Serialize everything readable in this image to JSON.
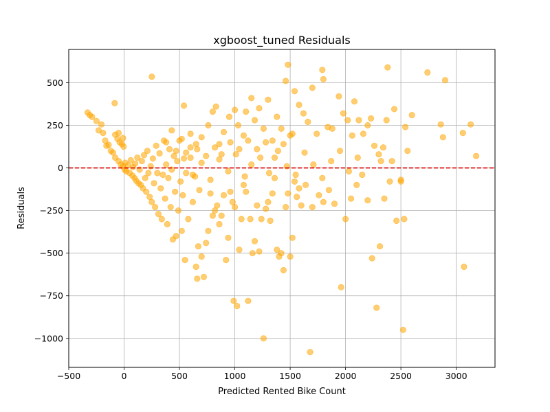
{
  "chart_data": {
    "type": "scatter",
    "title": "xgboost_tuned Residuals",
    "xlabel": "Predicted Rented Bike Count",
    "ylabel": "Residuals",
    "xlim": [
      -500,
      3350
    ],
    "ylim": [
      -1170,
      695
    ],
    "xticks": [
      -500,
      0,
      500,
      1000,
      1500,
      2000,
      2500,
      3000
    ],
    "yticks": [
      -1000,
      -750,
      -500,
      -250,
      0,
      250,
      500
    ],
    "grid": true,
    "marker_color": "#FFA500",
    "reference_line": {
      "y": 0,
      "color": "#DD0000",
      "style": "dashed"
    },
    "series": [
      {
        "points": [
          [
            -330,
            325
          ],
          [
            -310,
            310
          ],
          [
            -290,
            300
          ],
          [
            -250,
            275
          ],
          [
            -230,
            220
          ],
          [
            -205,
            255
          ],
          [
            -190,
            205
          ],
          [
            -170,
            160
          ],
          [
            -160,
            130
          ],
          [
            -140,
            135
          ],
          [
            -120,
            100
          ],
          [
            -100,
            90
          ],
          [
            -85,
            380
          ],
          [
            -80,
            195
          ],
          [
            -60,
            170
          ],
          [
            -50,
            205
          ],
          [
            -40,
            150
          ],
          [
            -20,
            140
          ],
          [
            -10,
            175
          ],
          [
            -5,
            125
          ],
          [
            -80,
            60
          ],
          [
            -50,
            40
          ],
          [
            -30,
            20
          ],
          [
            -10,
            10
          ],
          [
            5,
            -10
          ],
          [
            10,
            30
          ],
          [
            20,
            -20
          ],
          [
            35,
            15
          ],
          [
            50,
            -30
          ],
          [
            60,
            45
          ],
          [
            75,
            -45
          ],
          [
            80,
            5
          ],
          [
            95,
            -60
          ],
          [
            100,
            25
          ],
          [
            110,
            -75
          ],
          [
            120,
            60
          ],
          [
            130,
            -90
          ],
          [
            140,
            -10
          ],
          [
            150,
            -100
          ],
          [
            160,
            40
          ],
          [
            170,
            -120
          ],
          [
            180,
            75
          ],
          [
            190,
            -60
          ],
          [
            200,
            -140
          ],
          [
            210,
            100
          ],
          [
            220,
            -30
          ],
          [
            230,
            -170
          ],
          [
            240,
            10
          ],
          [
            250,
            -200
          ],
          [
            260,
            55
          ],
          [
            270,
            -90
          ],
          [
            280,
            -230
          ],
          [
            290,
            130
          ],
          [
            300,
            -30
          ],
          [
            310,
            -270
          ],
          [
            320,
            85
          ],
          [
            330,
            -120
          ],
          [
            340,
            -300
          ],
          [
            350,
            -40
          ],
          [
            360,
            160
          ],
          [
            370,
            -180
          ],
          [
            380,
            20
          ],
          [
            390,
            -330
          ],
          [
            400,
            -60
          ],
          [
            410,
            110
          ],
          [
            420,
            -230
          ],
          [
            430,
            -10
          ],
          [
            440,
            -420
          ],
          [
            450,
            70
          ],
          [
            460,
            -140
          ],
          [
            470,
            -400
          ],
          [
            480,
            40
          ],
          [
            490,
            -250
          ],
          [
            500,
            160
          ],
          [
            510,
            -80
          ],
          [
            520,
            -370
          ],
          [
            530,
            -160
          ],
          [
            540,
            55
          ],
          [
            550,
            -540
          ],
          [
            560,
            -30
          ],
          [
            580,
            -300
          ],
          [
            600,
            120
          ],
          [
            620,
            -200
          ],
          [
            640,
            -50
          ],
          [
            650,
            -580
          ],
          [
            660,
            -650
          ],
          [
            670,
            -460
          ],
          [
            680,
            -130
          ],
          [
            700,
            -520
          ],
          [
            720,
            -640
          ],
          [
            740,
            -440
          ],
          [
            760,
            -370
          ],
          [
            780,
            -150
          ],
          [
            800,
            -280
          ],
          [
            820,
            -250
          ],
          [
            840,
            -220
          ],
          [
            860,
            -330
          ],
          [
            880,
            -280
          ],
          [
            900,
            -160
          ],
          [
            920,
            -540
          ],
          [
            940,
            -410
          ],
          [
            960,
            -140
          ],
          [
            980,
            -200
          ],
          [
            990,
            -780
          ],
          [
            1000,
            -230
          ],
          [
            1020,
            -810
          ],
          [
            1040,
            -480
          ],
          [
            1060,
            -300
          ],
          [
            1080,
            -100
          ],
          [
            1100,
            -140
          ],
          [
            1120,
            -780
          ],
          [
            1140,
            -300
          ],
          [
            1160,
            -500
          ],
          [
            1180,
            -430
          ],
          [
            1200,
            -220
          ],
          [
            1220,
            -490
          ],
          [
            1240,
            -300
          ],
          [
            1260,
            -1000
          ],
          [
            1280,
            -240
          ],
          [
            1300,
            -200
          ],
          [
            1320,
            -310
          ],
          [
            1340,
            -150
          ],
          [
            1360,
            -60
          ],
          [
            1380,
            -480
          ],
          [
            1400,
            -520
          ],
          [
            1420,
            -500
          ],
          [
            1440,
            -600
          ],
          [
            1460,
            -230
          ],
          [
            1480,
            -150
          ],
          [
            1500,
            -520
          ],
          [
            1520,
            -410
          ],
          [
            1540,
            -80
          ],
          [
            1560,
            -170
          ],
          [
            1580,
            -120
          ],
          [
            1600,
            -220
          ],
          [
            1640,
            -100
          ],
          [
            1680,
            -1080
          ],
          [
            1700,
            -230
          ],
          [
            1760,
            -160
          ],
          [
            1800,
            -200
          ],
          [
            1850,
            -130
          ],
          [
            1900,
            -210
          ],
          [
            1960,
            -700
          ],
          [
            2000,
            -300
          ],
          [
            2050,
            -180
          ],
          [
            2100,
            -100
          ],
          [
            2150,
            -40
          ],
          [
            2200,
            -190
          ],
          [
            2240,
            -530
          ],
          [
            2280,
            -820
          ],
          [
            2310,
            -460
          ],
          [
            2350,
            -180
          ],
          [
            2400,
            -80
          ],
          [
            2460,
            -310
          ],
          [
            2500,
            -80
          ],
          [
            2520,
            -950
          ],
          [
            2530,
            -300
          ],
          [
            3070,
            -580
          ],
          [
            250,
            535
          ],
          [
            540,
            365
          ],
          [
            620,
            -40
          ],
          [
            700,
            30
          ],
          [
            780,
            -70
          ],
          [
            860,
            50
          ],
          [
            940,
            -20
          ],
          [
            1010,
            80
          ],
          [
            1090,
            -50
          ],
          [
            1150,
            20
          ],
          [
            1230,
            60
          ],
          [
            1310,
            -30
          ],
          [
            1390,
            100
          ],
          [
            1470,
            10
          ],
          [
            1550,
            -40
          ],
          [
            1630,
            90
          ],
          [
            1710,
            20
          ],
          [
            1790,
            -60
          ],
          [
            1870,
            40
          ],
          [
            1950,
            100
          ],
          [
            2030,
            -20
          ],
          [
            2110,
            60
          ],
          [
            600,
            200
          ],
          [
            650,
            140
          ],
          [
            700,
            180
          ],
          [
            760,
            250
          ],
          [
            800,
            330
          ],
          [
            830,
            360
          ],
          [
            860,
            140
          ],
          [
            900,
            210
          ],
          [
            950,
            300
          ],
          [
            1000,
            340
          ],
          [
            1030,
            250
          ],
          [
            1080,
            190
          ],
          [
            1100,
            330
          ],
          [
            1150,
            410
          ],
          [
            1180,
            280
          ],
          [
            1220,
            350
          ],
          [
            1260,
            230
          ],
          [
            1300,
            400
          ],
          [
            1340,
            160
          ],
          [
            1380,
            300
          ],
          [
            1420,
            230
          ],
          [
            1460,
            510
          ],
          [
            1480,
            605
          ],
          [
            1500,
            190
          ],
          [
            1540,
            450
          ],
          [
            1580,
            370
          ],
          [
            1620,
            320
          ],
          [
            1660,
            270
          ],
          [
            1700,
            470
          ],
          [
            1740,
            200
          ],
          [
            1790,
            575
          ],
          [
            1800,
            520
          ],
          [
            1840,
            240
          ],
          [
            1880,
            230
          ],
          [
            1940,
            420
          ],
          [
            1980,
            320
          ],
          [
            2020,
            280
          ],
          [
            2060,
            190
          ],
          [
            2080,
            390
          ],
          [
            2120,
            280
          ],
          [
            2160,
            200
          ],
          [
            2200,
            250
          ],
          [
            2230,
            290
          ],
          [
            2260,
            130
          ],
          [
            2300,
            80
          ],
          [
            2320,
            40
          ],
          [
            2340,
            120
          ],
          [
            2370,
            280
          ],
          [
            2380,
            590
          ],
          [
            2420,
            40
          ],
          [
            2440,
            345
          ],
          [
            2500,
            -70
          ],
          [
            2540,
            240
          ],
          [
            2560,
            100
          ],
          [
            2600,
            310
          ],
          [
            2740,
            560
          ],
          [
            2860,
            255
          ],
          [
            2880,
            180
          ],
          [
            2900,
            515
          ],
          [
            3060,
            205
          ],
          [
            3130,
            255
          ],
          [
            3180,
            70
          ],
          [
            380,
            150
          ],
          [
            430,
            220
          ],
          [
            470,
            100
          ],
          [
            520,
            170
          ],
          [
            560,
            90
          ],
          [
            600,
            60
          ],
          [
            660,
            110
          ],
          [
            740,
            70
          ],
          [
            820,
            120
          ],
          [
            880,
            80
          ],
          [
            960,
            150
          ],
          [
            1040,
            110
          ],
          [
            1120,
            160
          ],
          [
            1200,
            110
          ],
          [
            1280,
            150
          ],
          [
            1360,
            60
          ],
          [
            1440,
            140
          ],
          [
            1520,
            200
          ]
        ]
      }
    ]
  }
}
